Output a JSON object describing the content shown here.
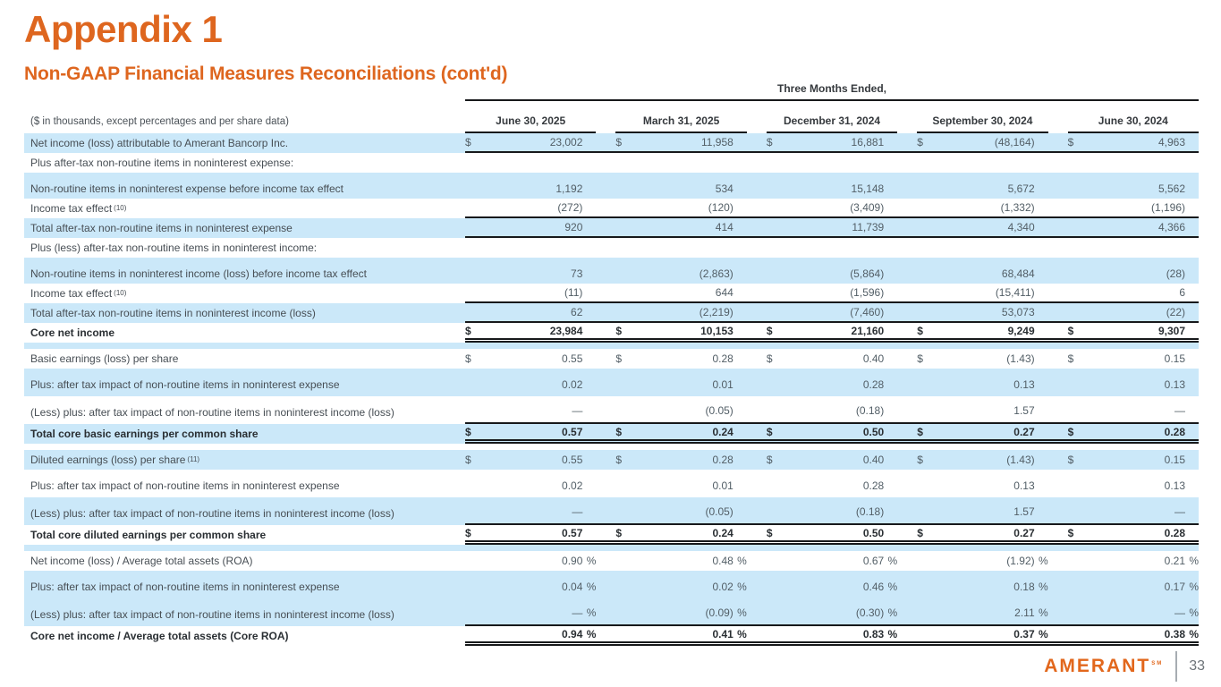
{
  "title": "Appendix 1",
  "subtitle": "Non-GAAP Financial Measures Reconciliations (cont'd)",
  "table": {
    "group_header": "Three Months Ended,",
    "note": "($ in thousands, except percentages and per share data)",
    "columns": [
      "June 30, 2025",
      "March 31, 2025",
      "December 31, 2024",
      "September 30, 2024",
      "June 30, 2024"
    ],
    "rows": [
      {
        "label": "Net income (loss) attributable to Amerant Bancorp Inc.",
        "bg": "blue",
        "bb": "single",
        "cells": [
          {
            "p": "$",
            "v": "23,002"
          },
          {
            "p": "$",
            "v": "11,958"
          },
          {
            "p": "$",
            "v": "16,881"
          },
          {
            "p": "$",
            "v": "(48,164)"
          },
          {
            "p": "$",
            "v": "4,963"
          }
        ]
      },
      {
        "label": "Plus after-tax non-routine items in noninterest expense:",
        "bg": "white"
      },
      {
        "spacer": true,
        "bg": "blue"
      },
      {
        "label": "Non-routine items in noninterest expense before income tax effect",
        "bg": "blue",
        "cells": [
          {
            "v": "1,192"
          },
          {
            "v": "534"
          },
          {
            "v": "15,148"
          },
          {
            "v": "5,672"
          },
          {
            "v": "5,562"
          }
        ]
      },
      {
        "label": "Income tax effect",
        "sup": "(10)",
        "bg": "white",
        "bb": "single",
        "cells": [
          {
            "v": "(272)"
          },
          {
            "v": "(120)"
          },
          {
            "v": "(3,409)"
          },
          {
            "v": "(1,332)"
          },
          {
            "v": "(1,196)"
          }
        ]
      },
      {
        "label": "Total after-tax non-routine items in noninterest expense",
        "bg": "blue",
        "bb": "single",
        "cells": [
          {
            "v": "920"
          },
          {
            "v": "414"
          },
          {
            "v": "11,739"
          },
          {
            "v": "4,340"
          },
          {
            "v": "4,366"
          }
        ]
      },
      {
        "label": "Plus (less) after-tax non-routine items in noninterest income:",
        "bg": "white"
      },
      {
        "spacer": true,
        "bg": "blue"
      },
      {
        "label": "Non-routine items in noninterest income (loss) before income tax effect",
        "bg": "blue",
        "cells": [
          {
            "v": "73"
          },
          {
            "v": "(2,863)"
          },
          {
            "v": "(5,864)"
          },
          {
            "v": "68,484"
          },
          {
            "v": "(28)"
          }
        ]
      },
      {
        "label": "Income tax effect",
        "sup": "(10)",
        "bg": "white",
        "bb": "single",
        "cells": [
          {
            "v": "(11)"
          },
          {
            "v": "644"
          },
          {
            "v": "(1,596)"
          },
          {
            "v": "(15,411)"
          },
          {
            "v": "6"
          }
        ]
      },
      {
        "label": "Total after-tax non-routine items in noninterest income (loss)",
        "bg": "blue",
        "bb": "single",
        "cells": [
          {
            "v": "62"
          },
          {
            "v": "(2,219)"
          },
          {
            "v": "(7,460)"
          },
          {
            "v": "53,073"
          },
          {
            "v": "(22)"
          }
        ]
      },
      {
        "label": "Core net income",
        "bold": true,
        "bg": "white",
        "bb": "double",
        "cells": [
          {
            "p": "$",
            "v": "23,984"
          },
          {
            "p": "$",
            "v": "10,153"
          },
          {
            "p": "$",
            "v": "21,160"
          },
          {
            "p": "$",
            "v": "9,249"
          },
          {
            "p": "$",
            "v": "9,307"
          }
        ]
      },
      {
        "spacer": true,
        "bg": "blue"
      },
      {
        "label": "Basic earnings (loss) per share",
        "bg": "white",
        "cells": [
          {
            "p": "$",
            "v": "0.55"
          },
          {
            "p": "$",
            "v": "0.28"
          },
          {
            "p": "$",
            "v": "0.40"
          },
          {
            "p": "$",
            "v": "(1.43)"
          },
          {
            "p": "$",
            "v": "0.15"
          }
        ]
      },
      {
        "label": "Plus: after tax impact of non-routine items in noninterest expense",
        "bg": "blue",
        "tall": true,
        "cells": [
          {
            "v": "0.02"
          },
          {
            "v": "0.01"
          },
          {
            "v": "0.28"
          },
          {
            "v": "0.13"
          },
          {
            "v": "0.13"
          }
        ]
      },
      {
        "label": "(Less) plus: after tax impact of non-routine items in noninterest income (loss)",
        "bg": "white",
        "tall": true,
        "bb": "single",
        "cells": [
          {
            "v": "—"
          },
          {
            "v": "(0.05)"
          },
          {
            "v": "(0.18)"
          },
          {
            "v": "1.57"
          },
          {
            "v": "—"
          }
        ]
      },
      {
        "label": "Total core basic earnings per common share",
        "bold": true,
        "bg": "blue",
        "bb": "double",
        "cells": [
          {
            "p": "$",
            "v": "0.57"
          },
          {
            "p": "$",
            "v": "0.24"
          },
          {
            "p": "$",
            "v": "0.50"
          },
          {
            "p": "$",
            "v": "0.27"
          },
          {
            "p": "$",
            "v": "0.28"
          }
        ]
      },
      {
        "spacer": true,
        "bg": "white"
      },
      {
        "label": "Diluted earnings (loss) per share",
        "sup": "(11)",
        "bg": "blue",
        "cells": [
          {
            "p": "$",
            "v": "0.55"
          },
          {
            "p": "$",
            "v": "0.28"
          },
          {
            "p": "$",
            "v": "0.40"
          },
          {
            "p": "$",
            "v": "(1.43)"
          },
          {
            "p": "$",
            "v": "0.15"
          }
        ]
      },
      {
        "label": "Plus: after tax impact of non-routine items in noninterest expense",
        "bg": "white",
        "tall": true,
        "cells": [
          {
            "v": "0.02"
          },
          {
            "v": "0.01"
          },
          {
            "v": "0.28"
          },
          {
            "v": "0.13"
          },
          {
            "v": "0.13"
          }
        ]
      },
      {
        "label": "(Less) plus: after tax impact of non-routine items in noninterest income (loss)",
        "bg": "blue",
        "tall": true,
        "bb": "single",
        "cells": [
          {
            "v": "—"
          },
          {
            "v": "(0.05)"
          },
          {
            "v": "(0.18)"
          },
          {
            "v": "1.57"
          },
          {
            "v": "—"
          }
        ]
      },
      {
        "label": "Total core diluted earnings per common share",
        "bold": true,
        "bg": "white",
        "bb": "double",
        "cells": [
          {
            "p": "$",
            "v": "0.57"
          },
          {
            "p": "$",
            "v": "0.24"
          },
          {
            "p": "$",
            "v": "0.50"
          },
          {
            "p": "$",
            "v": "0.27"
          },
          {
            "p": "$",
            "v": "0.28"
          }
        ]
      },
      {
        "spacer": true,
        "bg": "blue"
      },
      {
        "label": "Net income (loss) / Average total assets (ROA)",
        "bg": "white",
        "cells": [
          {
            "v": "0.90",
            "s": "%"
          },
          {
            "v": "0.48",
            "s": "%"
          },
          {
            "v": "0.67",
            "s": "%"
          },
          {
            "v": "(1.92)",
            "s": "%"
          },
          {
            "v": "0.21",
            "s": "%"
          }
        ]
      },
      {
        "label": "Plus: after tax impact of non-routine items in noninterest expense",
        "bg": "blue",
        "tall": true,
        "cells": [
          {
            "v": "0.04",
            "s": "%"
          },
          {
            "v": "0.02",
            "s": "%"
          },
          {
            "v": "0.46",
            "s": "%"
          },
          {
            "v": "0.18",
            "s": "%"
          },
          {
            "v": "0.17",
            "s": "%"
          }
        ]
      },
      {
        "label": "(Less) plus: after tax impact of non-routine items in noninterest income (loss)",
        "bg": "blue",
        "tall": true,
        "bb": "single",
        "cells": [
          {
            "v": "—",
            "s": "%"
          },
          {
            "v": "(0.09)",
            "s": "%"
          },
          {
            "v": "(0.30)",
            "s": "%"
          },
          {
            "v": "2.11",
            "s": "%"
          },
          {
            "v": "—",
            "s": "%"
          }
        ]
      },
      {
        "label": "Core net income / Average total assets (Core ROA)",
        "bold": true,
        "bg": "white",
        "bb": "double",
        "cells": [
          {
            "v": "0.94",
            "s": "%"
          },
          {
            "v": "0.41",
            "s": "%"
          },
          {
            "v": "0.83",
            "s": "%"
          },
          {
            "v": "0.37",
            "s": "%"
          },
          {
            "v": "0.38",
            "s": "%"
          }
        ]
      }
    ]
  },
  "footer": {
    "logo_text": "AMERANT",
    "logo_mark": "SM",
    "page_number": "33"
  },
  "colors": {
    "accent_orange": "#DE661F",
    "row_highlight_blue": "#CBE8F9",
    "rule_black": "#17191B"
  }
}
